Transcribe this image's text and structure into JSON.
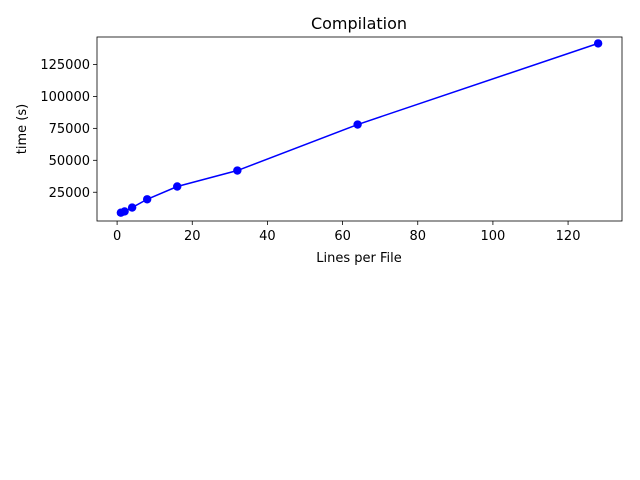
{
  "chart_data": {
    "type": "line",
    "title": "Compilation",
    "xlabel": "Lines per File",
    "ylabel": "time (s)",
    "xlim": [
      -5.35,
      134.35
    ],
    "ylim": [
      2500,
      146500
    ],
    "xticks": [
      0,
      20,
      40,
      60,
      80,
      100,
      120
    ],
    "yticks": [
      25000,
      50000,
      75000,
      100000,
      125000
    ],
    "ytick_labels": [
      "25000",
      "50000",
      "75000",
      "100000",
      "125000"
    ],
    "grid": false,
    "legend": "none",
    "series": [
      {
        "color": "#0000ff",
        "marker": "circle",
        "x": [
          1,
          2,
          4,
          8,
          16,
          32,
          64,
          128
        ],
        "y": [
          9000,
          10000,
          13000,
          19500,
          29500,
          42000,
          78000,
          141500
        ]
      }
    ]
  }
}
